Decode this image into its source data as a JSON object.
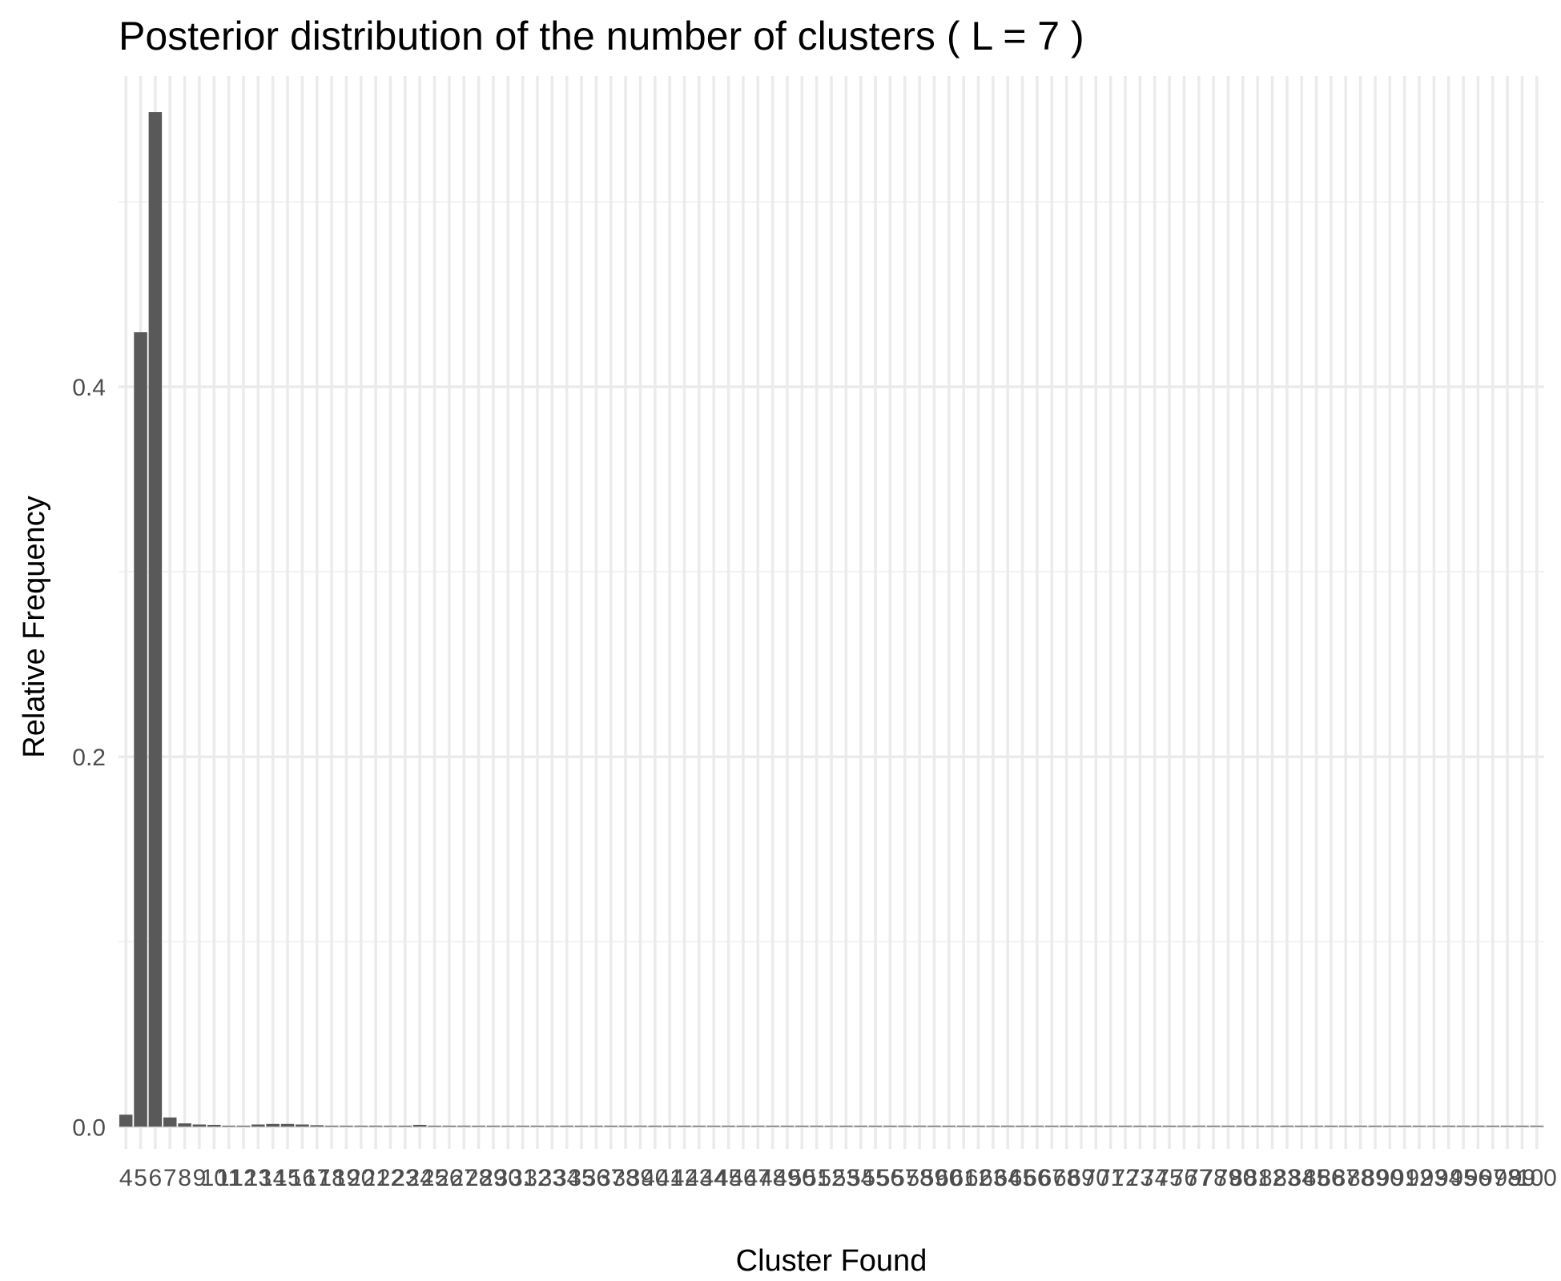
{
  "chart_data": {
    "type": "bar",
    "title": "Posterior distribution of the number of clusters ( L = 7 )",
    "xlabel": "Cluster Found",
    "ylabel": "Relative Frequency",
    "categories": [
      "4",
      "5",
      "6",
      "7",
      "8",
      "9",
      "10",
      "11",
      "12",
      "13",
      "14",
      "15",
      "16",
      "17",
      "18",
      "19",
      "20",
      "21",
      "22",
      "23",
      "24",
      "25",
      "26",
      "27",
      "28",
      "29",
      "30",
      "31",
      "32",
      "33",
      "34",
      "35",
      "36",
      "37",
      "38",
      "39",
      "40",
      "41",
      "42",
      "43",
      "44",
      "45",
      "46",
      "47",
      "48",
      "49",
      "50",
      "51",
      "52",
      "53",
      "54",
      "55",
      "56",
      "57",
      "58",
      "59",
      "60",
      "61",
      "62",
      "63",
      "64",
      "65",
      "66",
      "67",
      "68",
      "69",
      "70",
      "71",
      "72",
      "73",
      "74",
      "75",
      "76",
      "77",
      "78",
      "79",
      "80",
      "81",
      "82",
      "83",
      "84",
      "85",
      "86",
      "87",
      "88",
      "89",
      "90",
      "91",
      "92",
      "93",
      "94",
      "95",
      "96",
      "97",
      "98",
      "99",
      "100"
    ],
    "values": [
      0.0065,
      0.4295,
      0.5485,
      0.005,
      0.0018,
      0.0012,
      0.001,
      0.0004,
      0.0003,
      0.0012,
      0.0015,
      0.0015,
      0.0012,
      0.0008,
      0.0005,
      0.0004,
      0.0004,
      0.0003,
      0.0003,
      0.0003,
      0.001,
      0.0003,
      0.0002,
      0.0002,
      0.0002,
      0.0002,
      0.0002,
      0.0002,
      0.0002,
      0.0002,
      0.0002,
      0.0002,
      0.0002,
      0.0002,
      0.0002,
      0.0002,
      0.0002,
      0.0002,
      0.0002,
      0.0002,
      0.0002,
      0.0002,
      0.0002,
      0.0002,
      0.0002,
      0.0002,
      0.0002,
      0.0002,
      0.0002,
      0.0002,
      0.0002,
      0.0002,
      0.0002,
      0.0002,
      0.0002,
      0.0002,
      0.0002,
      0.0002,
      0.0002,
      0.0002,
      0.0002,
      0.0002,
      0.0002,
      0.0002,
      0.0002,
      0.0002,
      0.0002,
      0.0002,
      0.0002,
      0.0002,
      0.0002,
      0.0002,
      0.0002,
      0.0002,
      0.0002,
      0.0002,
      0.0002,
      0.0002,
      0.0002,
      0.0002,
      0.0002,
      0.0002,
      0.0002,
      0.0002,
      0.0002,
      0.0002,
      0.0002,
      0.0002,
      0.0002,
      0.0002,
      0.0002,
      0.0002,
      0.0002,
      0.0002,
      0.0002,
      0.0002,
      0.0002
    ],
    "ylim": [
      -0.012,
      0.568
    ],
    "yticks": [
      0.0,
      0.2,
      0.4
    ],
    "ytick_labels": [
      "0.0",
      "0.2",
      "0.4"
    ],
    "grid": true,
    "legend": "none",
    "colors": {
      "bar": "#595959",
      "grid_major": "#ebebeb",
      "grid_minor": "#f2f2f2",
      "tick_text": "#4d4d4d"
    }
  }
}
